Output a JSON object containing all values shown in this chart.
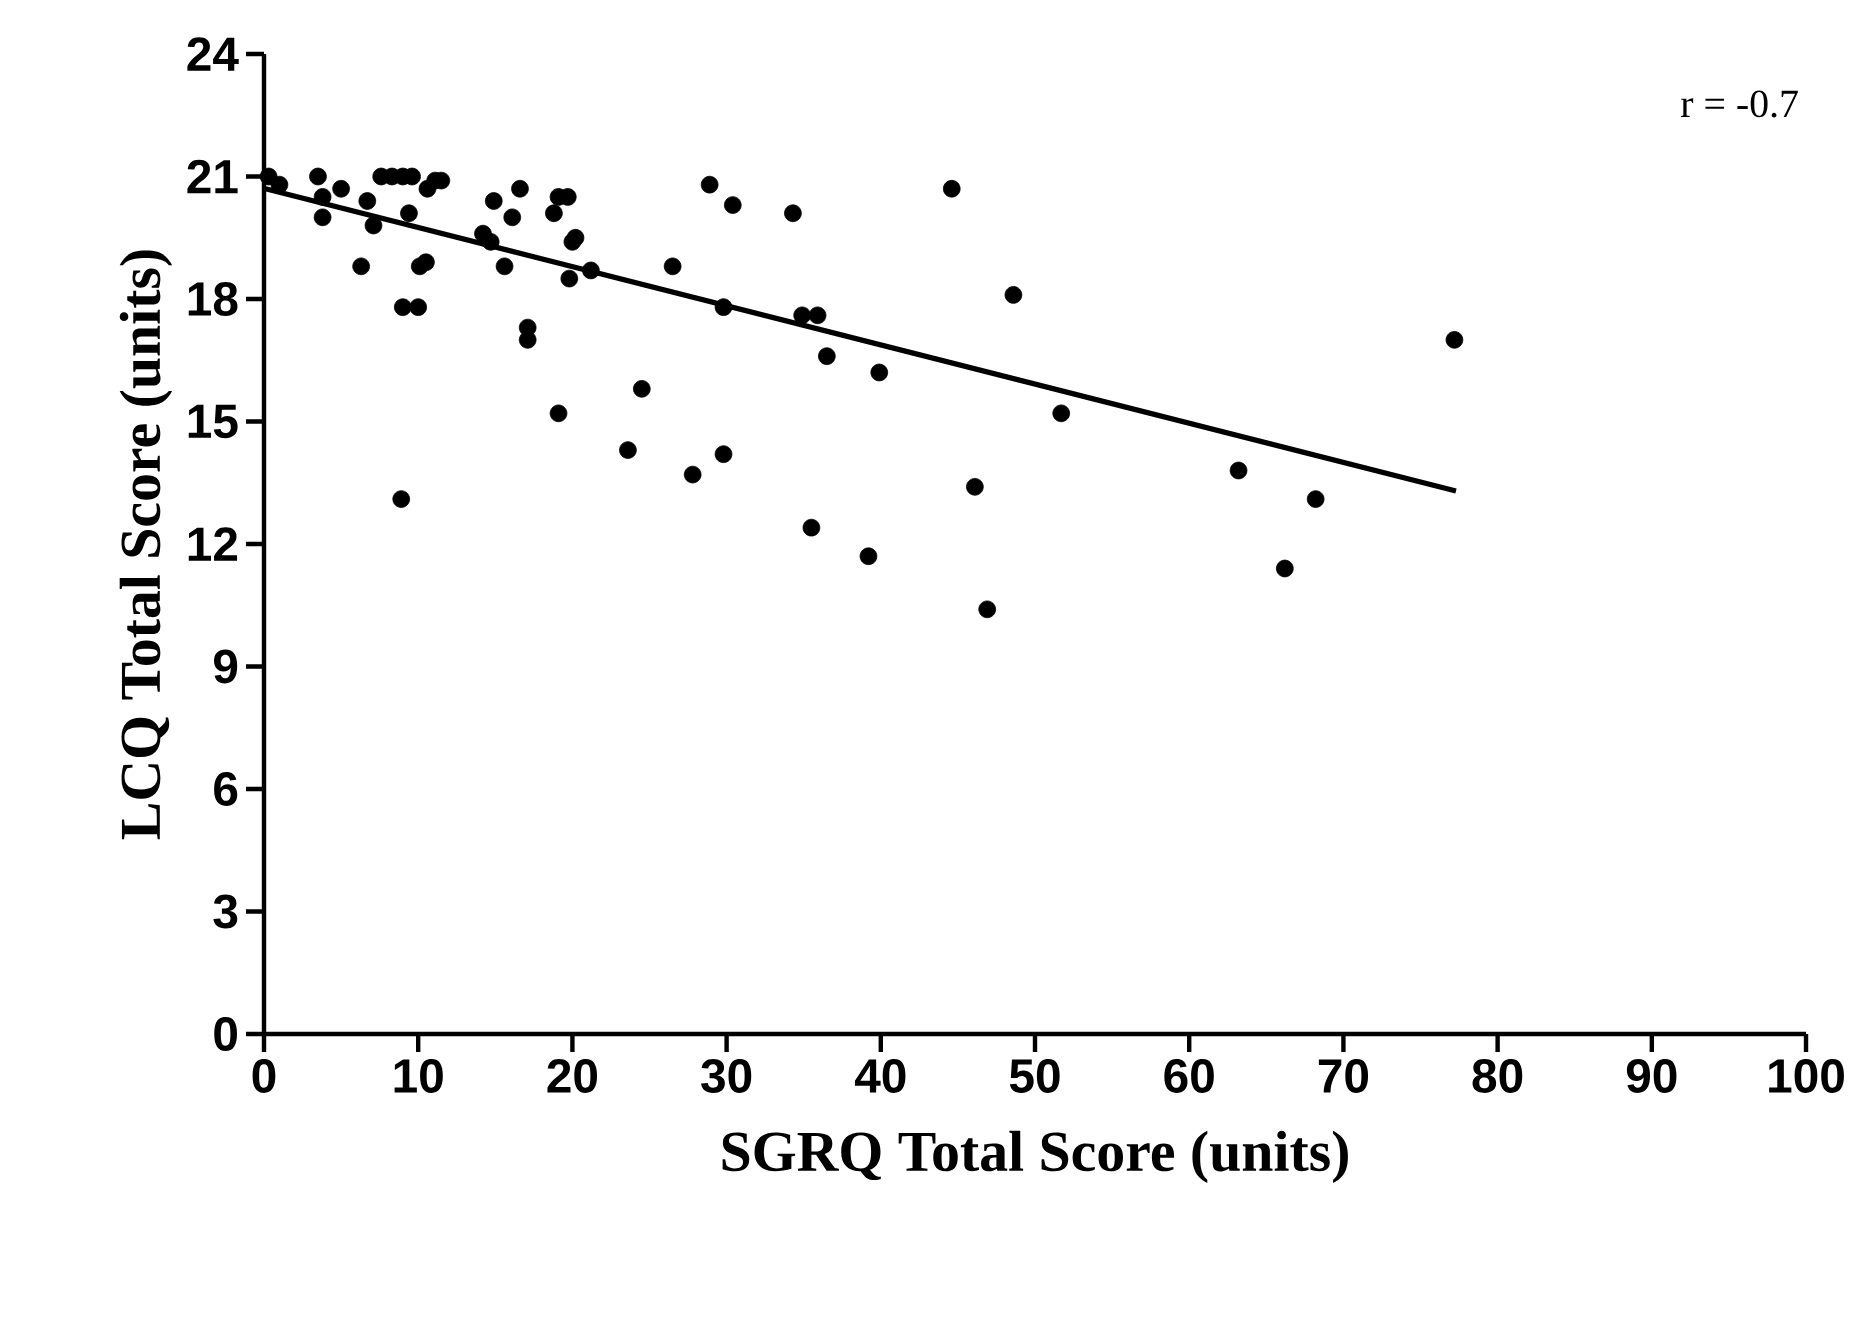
{
  "chart_data": {
    "type": "scatter",
    "xlabel": "SGRQ Total Score (units)",
    "ylabel": "LCQ Total Score (units)",
    "annotations": [
      "r = -0.7"
    ],
    "xlim": [
      0,
      100
    ],
    "ylim": [
      0,
      24
    ],
    "xticks": [
      0,
      10,
      20,
      30,
      40,
      50,
      60,
      70,
      80,
      90,
      100
    ],
    "yticks": [
      0,
      3,
      6,
      9,
      12,
      15,
      18,
      21,
      24
    ],
    "grid": false,
    "series": [
      {
        "color": "#000000",
        "marker": "circle",
        "x": [
          0.3,
          1.0,
          3.5,
          3.8,
          3.8,
          5.0,
          6.3,
          6.7,
          7.1,
          7.6,
          8.3,
          9.0,
          9.6,
          9.0,
          8.9,
          9.4,
          10.0,
          10.1,
          10.5,
          10.6,
          11.1,
          11.5,
          14.2,
          14.7,
          14.9,
          15.6,
          16.1,
          16.6,
          17.1,
          17.1,
          18.8,
          19.1,
          19.7,
          19.1,
          19.8,
          20.0,
          20.2,
          21.2,
          23.6,
          24.5,
          26.5,
          27.8,
          28.9,
          29.8,
          29.8,
          30.4,
          34.3,
          34.9,
          35.9,
          35.5,
          36.5,
          39.2,
          39.9,
          44.6,
          46.1,
          46.9,
          48.6,
          51.7,
          63.2,
          66.2,
          68.2,
          77.2
        ],
        "values": [
          21.0,
          20.8,
          21.0,
          20.5,
          20.0,
          20.7,
          18.8,
          20.4,
          19.8,
          21.0,
          21.0,
          21.0,
          21.0,
          17.8,
          13.1,
          20.1,
          17.8,
          18.8,
          18.9,
          20.7,
          20.9,
          20.9,
          19.6,
          19.4,
          20.4,
          18.8,
          20.0,
          20.7,
          17.3,
          17.0,
          20.1,
          20.5,
          20.5,
          15.2,
          18.5,
          19.4,
          19.5,
          18.7,
          14.3,
          15.8,
          18.8,
          13.7,
          20.8,
          17.8,
          14.2,
          20.3,
          20.1,
          17.6,
          17.6,
          12.4,
          16.6,
          11.7,
          16.2,
          20.7,
          13.4,
          10.4,
          18.1,
          15.2,
          13.8,
          11.4,
          13.1,
          17.0
        ]
      },
      {
        "type": "line",
        "color": "#000000",
        "marker": "none",
        "line_style": "solid",
        "x": [
          0.1,
          77.3
        ],
        "values": [
          20.7,
          13.3
        ]
      }
    ]
  }
}
